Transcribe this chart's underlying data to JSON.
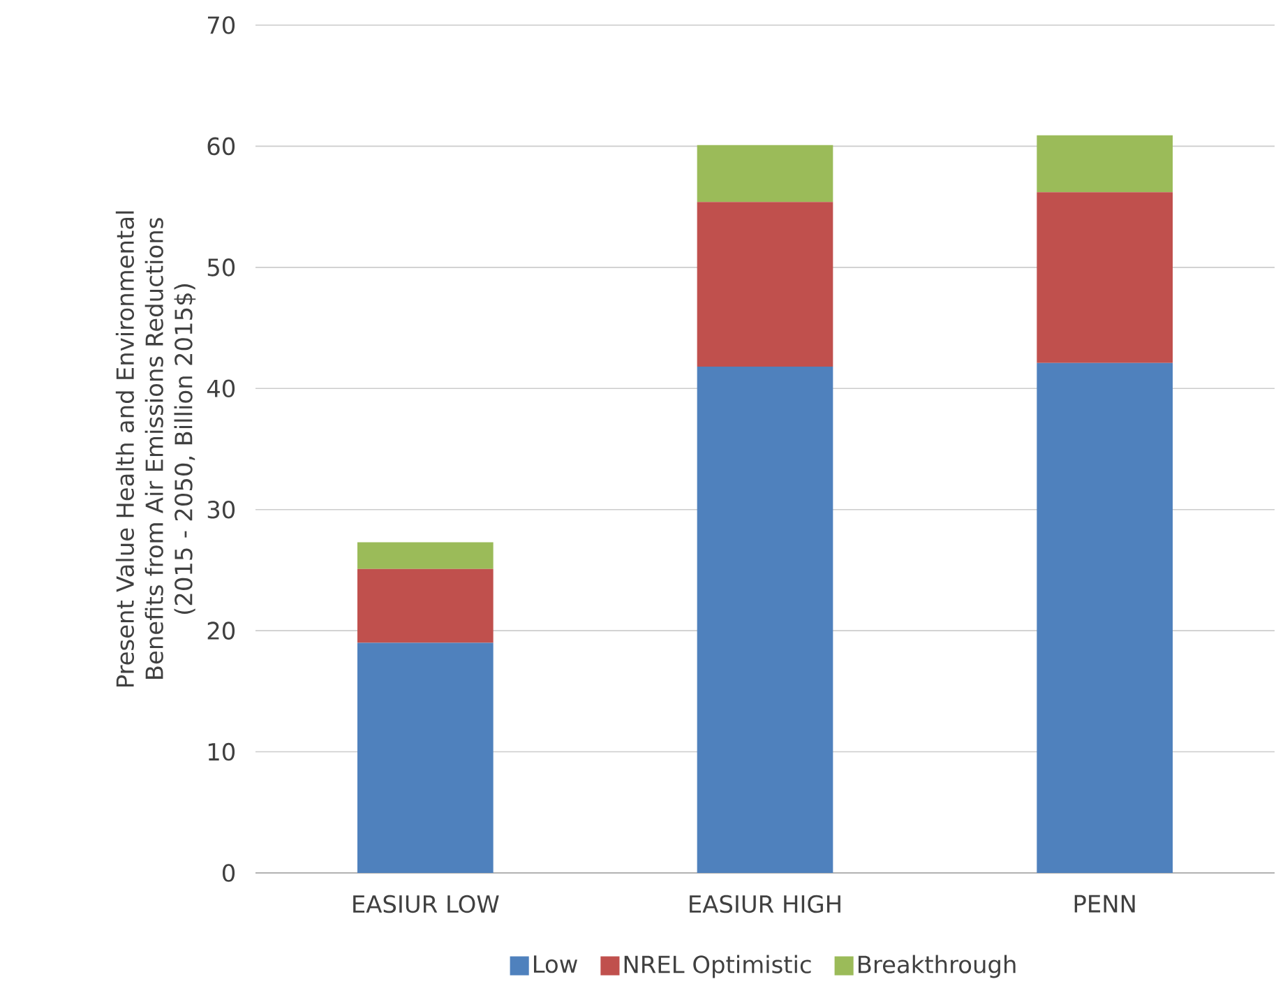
{
  "chart_data": {
    "type": "bar",
    "stacked": true,
    "ylabel": "Present Value Health and Environmental Benefits from Air Emissions Reductions (2015 - 2050, Billion 2015$)",
    "categories": [
      "EASIUR LOW",
      "EASIUR HIGH",
      "PENN"
    ],
    "series": [
      {
        "name": "Low",
        "color": "#4f81bd",
        "values": [
          19.0,
          41.8,
          42.1
        ]
      },
      {
        "name": "NREL Optimistic",
        "color": "#c0504d",
        "values": [
          6.1,
          13.6,
          14.1
        ]
      },
      {
        "name": "Breakthrough",
        "color": "#9bbb59",
        "values": [
          2.2,
          4.7,
          4.7
        ]
      }
    ],
    "ylim": [
      0,
      70
    ],
    "yticks": [
      0,
      10,
      20,
      30,
      40,
      50,
      60,
      70
    ],
    "grid": "y",
    "legend": "bottom"
  }
}
